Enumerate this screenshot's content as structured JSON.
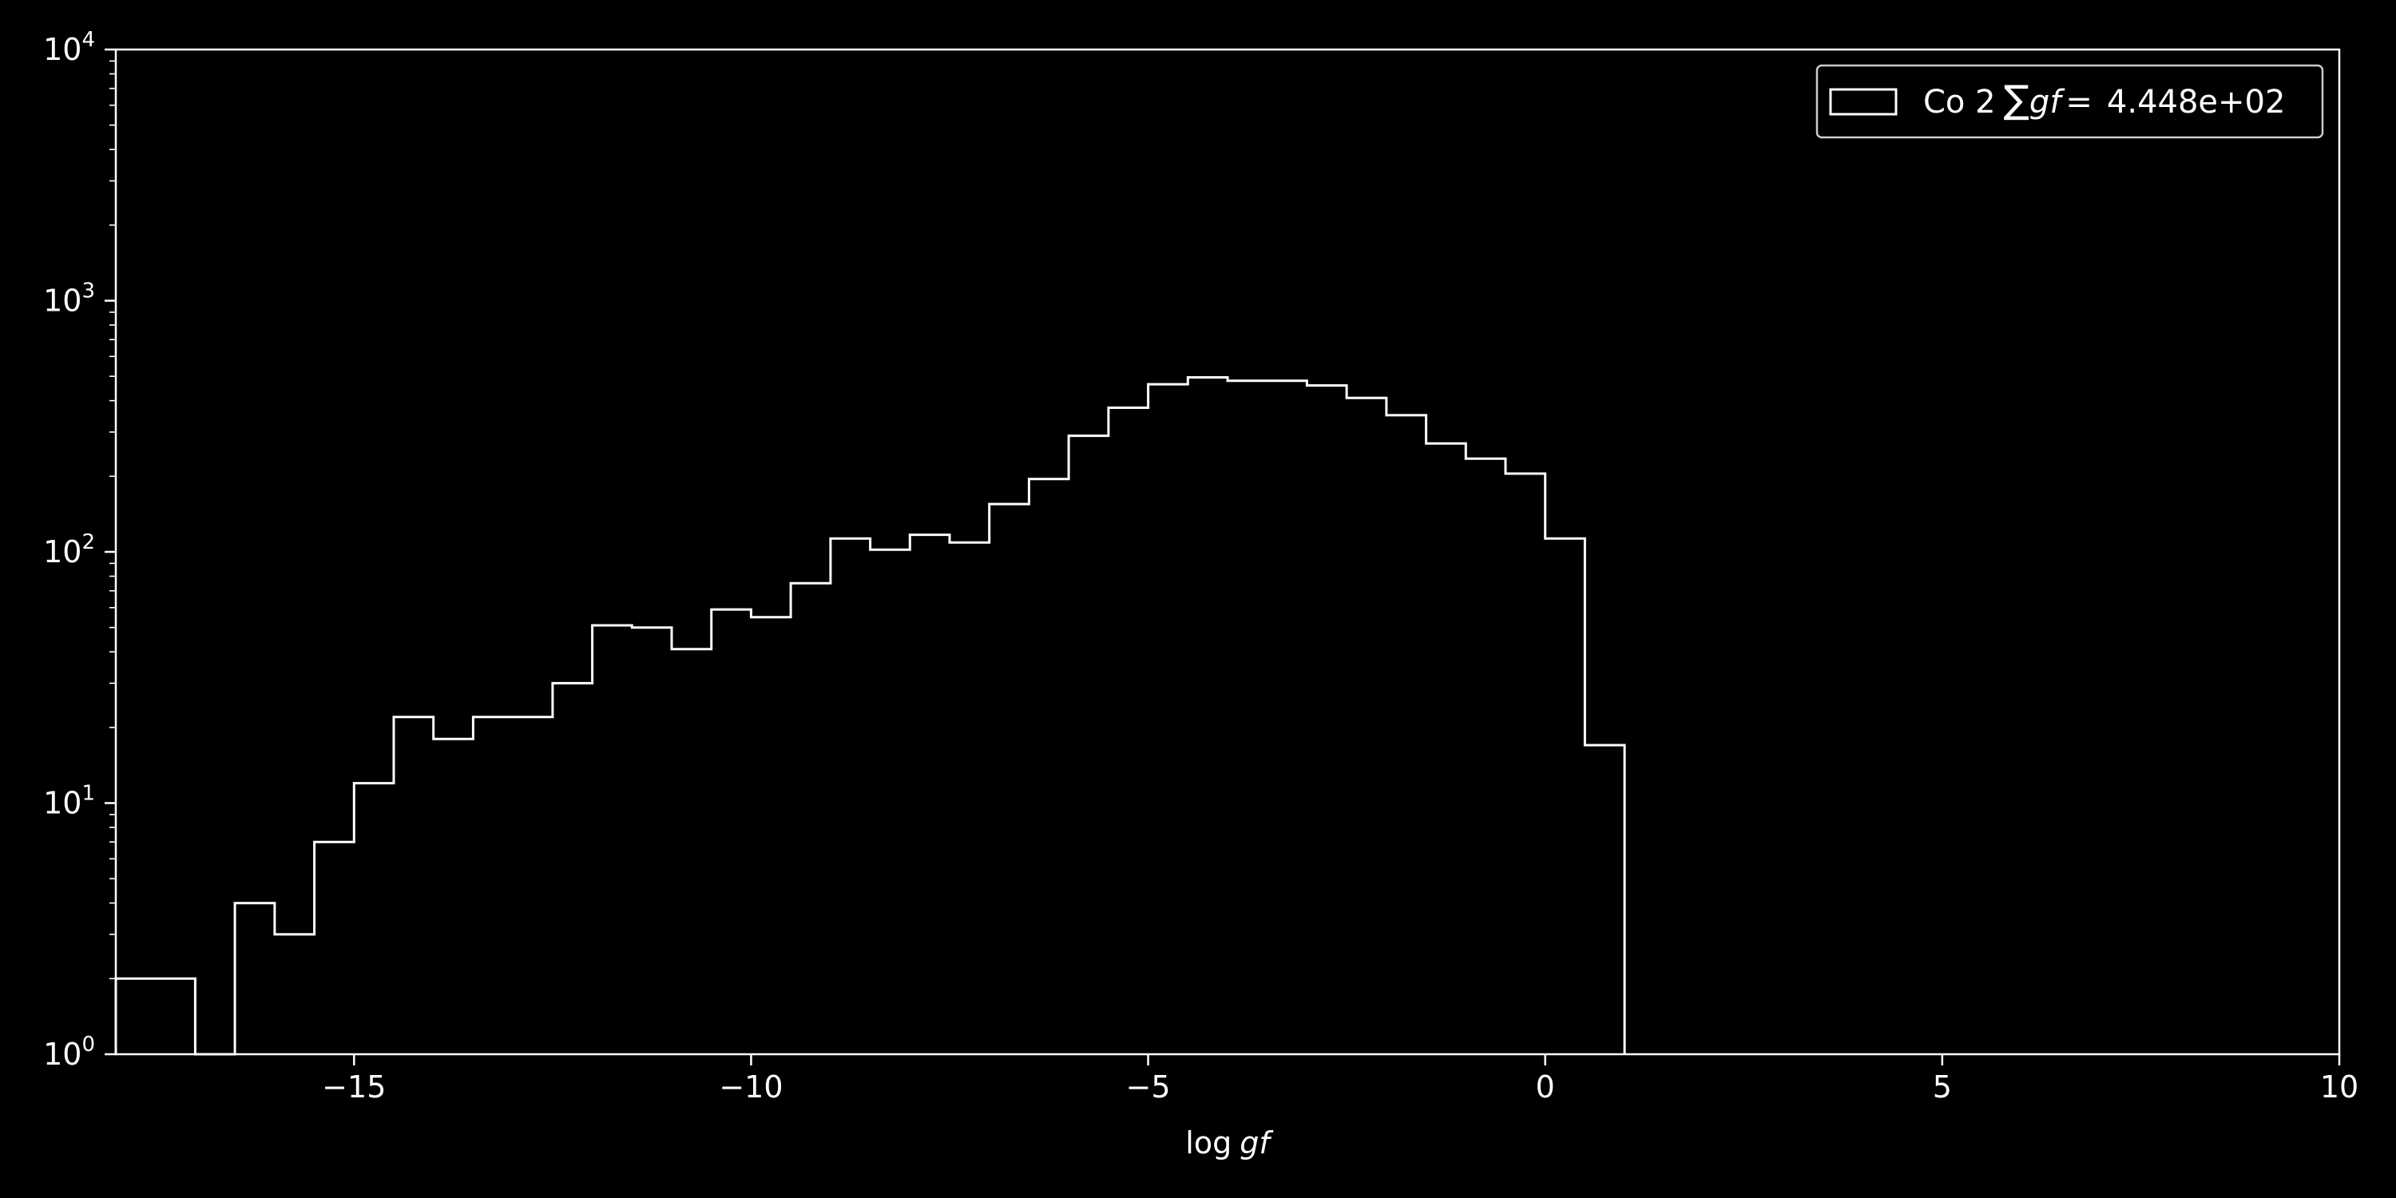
{
  "chart_data": {
    "type": "histogram",
    "title": "",
    "xlabel_prefix": "log",
    "xlabel_var": "gf",
    "ylabel": "",
    "xlim": [
      -18,
      10
    ],
    "ylim": [
      1,
      10000
    ],
    "yscale": "log",
    "grid": false,
    "legend_position": "top-right",
    "x_ticks": [
      -15,
      -10,
      -5,
      0,
      5,
      10
    ],
    "x_tick_labels": [
      "−15",
      "−10",
      "−5",
      "0",
      "5",
      "10"
    ],
    "y_ticks": [
      1,
      10,
      100,
      1000,
      10000
    ],
    "y_tick_base": "10",
    "y_tick_exponents": [
      "0",
      "1",
      "2",
      "3",
      "4"
    ],
    "series": [
      {
        "legend_prefix": "Co 2",
        "legend_sum_symbol": "∑",
        "legend_var": "gf",
        "legend_eq": "=",
        "legend_value": "4.448e+02",
        "bin_edges": [
          -18,
          -17.5,
          -17,
          -16.5,
          -16,
          -15.5,
          -15,
          -14.5,
          -14,
          -13.5,
          -13,
          -12.5,
          -12,
          -11.5,
          -11,
          -10.5,
          -10,
          -9.5,
          -9,
          -8.5,
          -8,
          -7.5,
          -7,
          -6.5,
          -6,
          -5.5,
          -5,
          -4.5,
          -4,
          -3.5,
          -3,
          -2.5,
          -2,
          -1.5,
          -1,
          -0.5,
          0,
          0.5,
          1
        ],
        "counts": [
          2,
          2,
          1,
          4,
          3,
          7,
          12,
          22,
          18,
          22,
          22,
          30,
          51,
          50,
          41,
          59,
          55,
          75,
          113,
          102,
          117,
          109,
          155,
          195,
          290,
          375,
          465,
          495,
          480,
          480,
          460,
          410,
          350,
          270,
          235,
          205,
          113,
          17
        ]
      }
    ]
  },
  "colors": {
    "background": "#000000",
    "foreground": "#ffffff"
  }
}
